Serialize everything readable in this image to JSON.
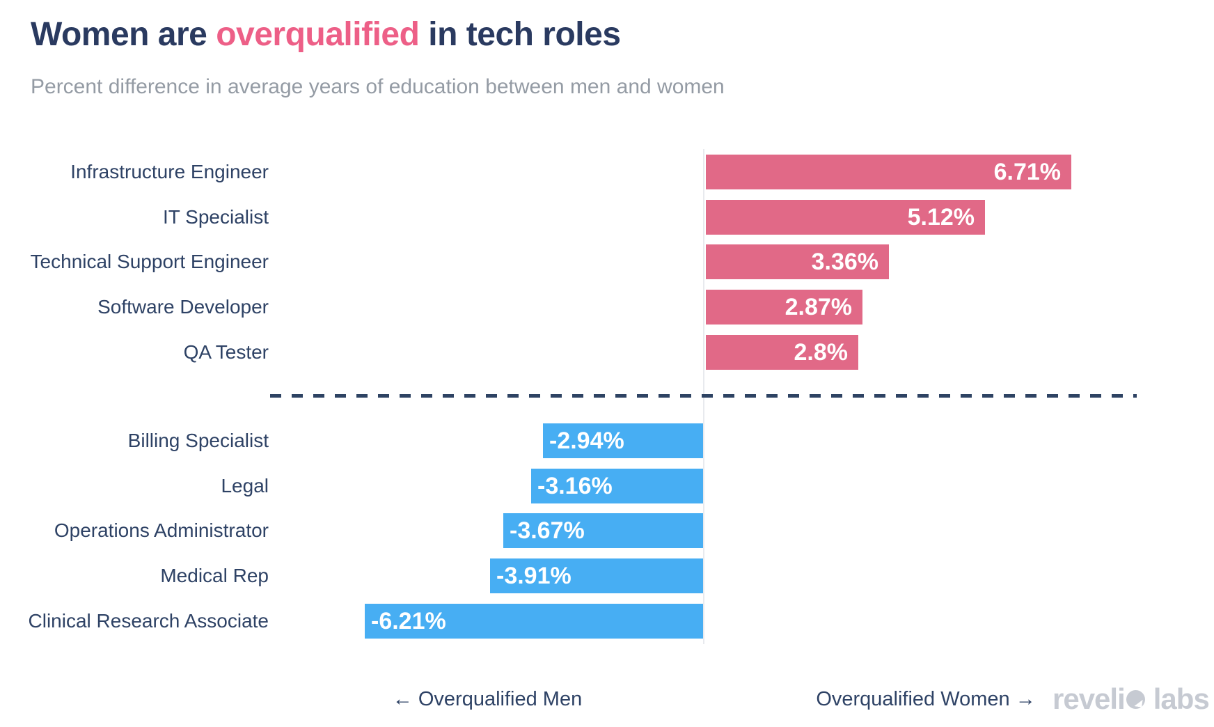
{
  "header": {
    "title_prefix": "Women are ",
    "title_highlight": "overqualified",
    "title_suffix": " in tech roles",
    "subtitle": "Percent difference in average years of education between men and women"
  },
  "chart_data": {
    "type": "bar",
    "orientation": "horizontal",
    "title": "Women are overqualified in tech roles",
    "subtitle": "Percent difference in average years of education between men and women",
    "categories": [
      "Infrastructure Engineer",
      "IT Specialist",
      "Technical Support Engineer",
      "Software Developer",
      "QA Tester",
      "Billing Specialist",
      "Legal",
      "Operations Administrator",
      "Medical Rep",
      "Clinical Research Associate"
    ],
    "values": [
      6.71,
      5.12,
      3.36,
      2.87,
      2.8,
      -2.94,
      -3.16,
      -3.67,
      -3.91,
      -6.21
    ],
    "value_labels": [
      "6.71%",
      "5.12%",
      "3.36%",
      "2.87%",
      "2.8%",
      "-2.94%",
      "-3.16%",
      "-3.67%",
      "-3.91%",
      "-6.21%"
    ],
    "positive_group_label": "Overqualified Women",
    "negative_group_label": "Overqualified Men",
    "xlabel": "",
    "ylabel": "",
    "xlim": [
      -8,
      8
    ],
    "grid": false,
    "zero_divider": "dashed",
    "legend_position": "bottom"
  },
  "footer": {
    "left_label": "← Overqualified Men",
    "right_label": "Overqualified Women →"
  },
  "brand": {
    "part1": "reveli",
    "part2": "labs"
  },
  "colors": {
    "bar_positive_pink": "#e16987",
    "bar_negative_blue": "#47aef3",
    "title_navy": "#2a3a60",
    "title_pink": "#ed5f87",
    "label_navy": "#2e4265",
    "subtitle_gray": "#949ba4",
    "dash_navy": "#2e4363",
    "axis_gray": "#e8eaee",
    "logo_gray": "#c6cad2",
    "value_text": "#ffffff"
  }
}
